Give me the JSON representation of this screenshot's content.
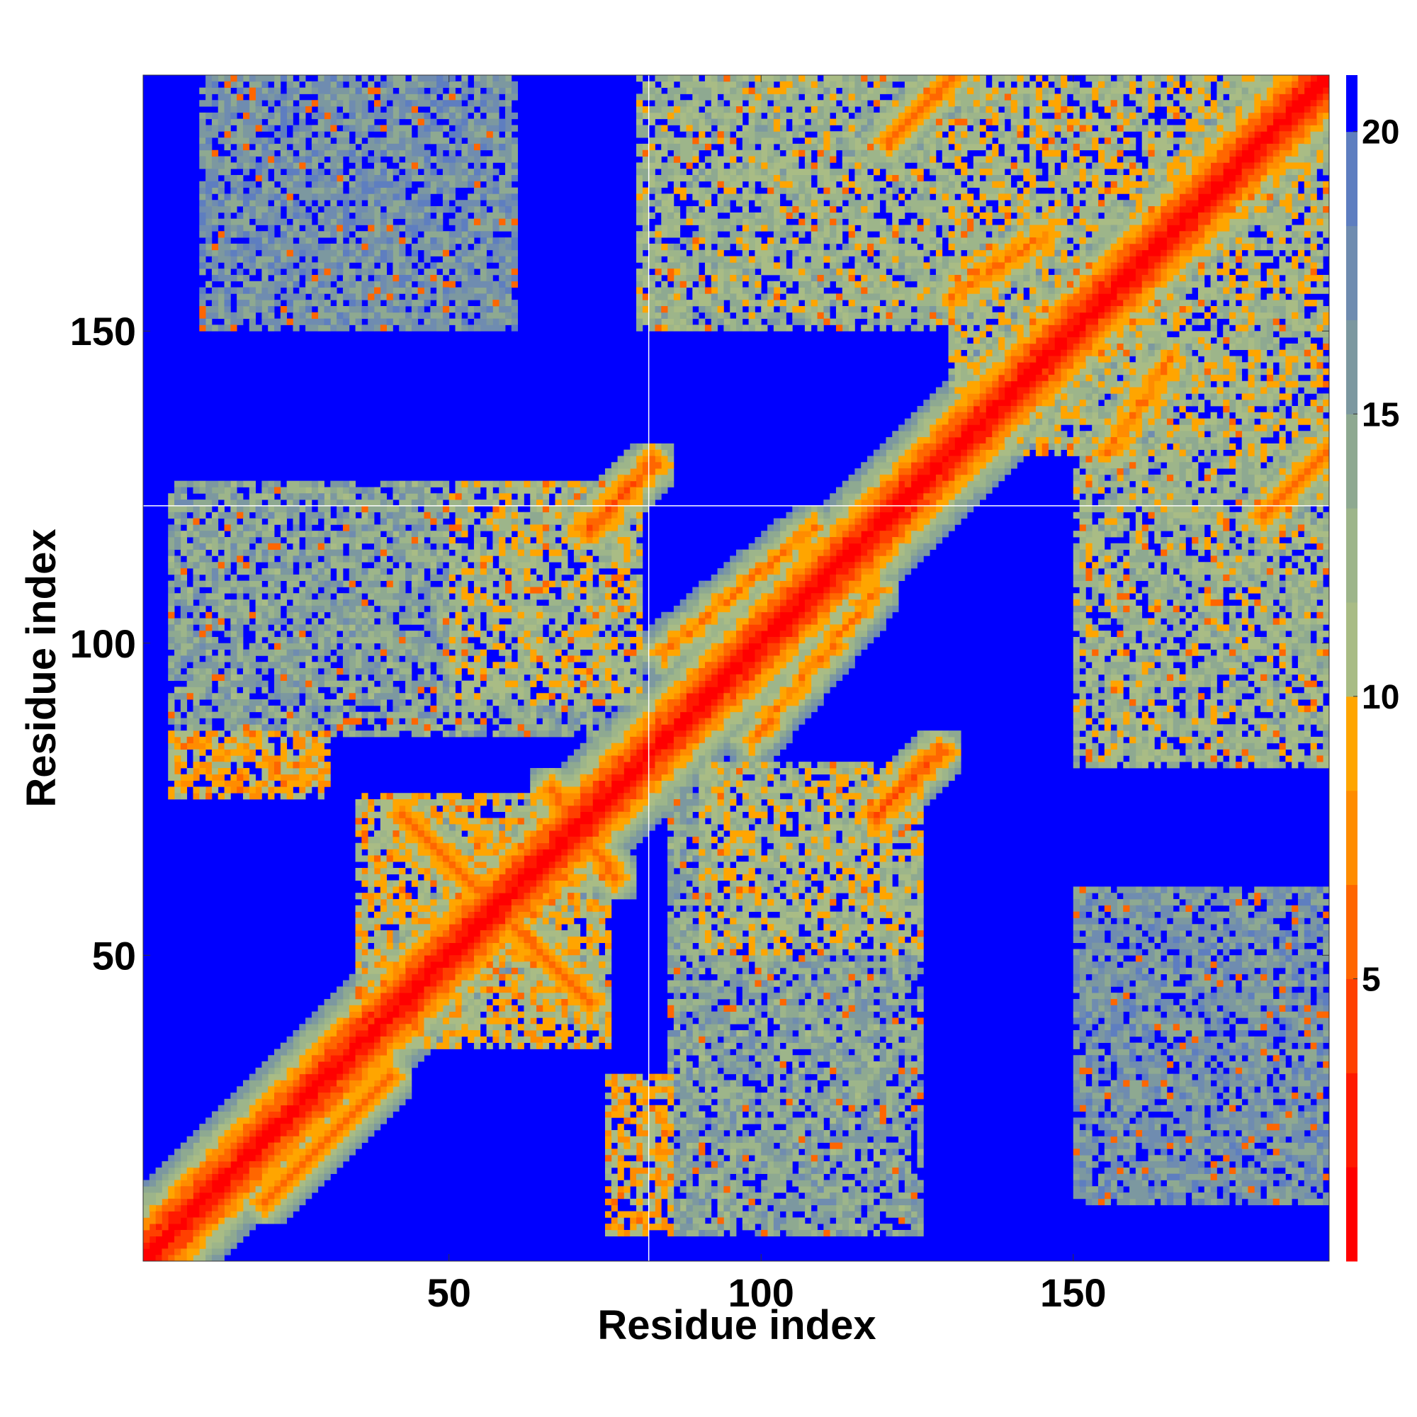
{
  "chart_data": {
    "type": "heatmap",
    "title": "",
    "xlabel": "Residue index",
    "ylabel": "Residue index",
    "n_residues": 190,
    "xlim": [
      1,
      190
    ],
    "ylim": [
      1,
      190
    ],
    "x_ticks": [
      50,
      100,
      150
    ],
    "y_ticks": [
      50,
      100,
      150
    ],
    "x_tick_labels": [
      "50",
      "100",
      "150"
    ],
    "y_tick_labels": [
      "50",
      "100",
      "150"
    ],
    "colorbar": {
      "range": [
        0,
        21
      ],
      "ticks": [
        5,
        10,
        15,
        20
      ],
      "tick_labels": [
        "5",
        "10",
        "15",
        "20"
      ],
      "low_color": "#ff0000",
      "mid_color": "#ffa500",
      "high_color": "#99b27f",
      "max_color": "#0000ff",
      "palette": [
        "#ff0000",
        "#ff1a00",
        "#ff4000",
        "#ff6600",
        "#ff8c00",
        "#ffa500",
        "#a9bc85",
        "#9db58a",
        "#8ea991",
        "#7c98a0",
        "#6f8cb0",
        "#5e7ec0",
        "#0000ff"
      ]
    },
    "background_value": 21,
    "guide_lines": {
      "x": 82,
      "y": 122,
      "color": "#ffffff"
    },
    "diagonal": {
      "value": 0
    },
    "contact_segments": [
      {
        "start": [
          20,
          10
        ],
        "end": [
          40,
          30
        ],
        "value": 6
      },
      {
        "start": [
          42,
          72
        ],
        "end": [
          72,
          42
        ],
        "value": 6
      },
      {
        "start": [
          66,
          76
        ],
        "end": [
          76,
          62
        ],
        "value": 6
      },
      {
        "start": [
          72,
          118
        ],
        "end": [
          82,
          128
        ],
        "value": 5
      },
      {
        "start": [
          118,
          72
        ],
        "end": [
          128,
          82
        ],
        "value": 5
      },
      {
        "start": [
          98,
          84
        ],
        "end": [
          118,
          108
        ],
        "value": 7
      },
      {
        "start": [
          84,
          98
        ],
        "end": [
          108,
          118
        ],
        "value": 7
      },
      {
        "start": [
          120,
          180
        ],
        "end": [
          130,
          190
        ],
        "value": 6
      },
      {
        "start": [
          180,
          120
        ],
        "end": [
          190,
          130
        ],
        "value": 6
      },
      {
        "start": [
          155,
          130
        ],
        "end": [
          165,
          145
        ],
        "value": 7
      },
      {
        "start": [
          130,
          155
        ],
        "end": [
          145,
          165
        ],
        "value": 7
      }
    ],
    "contact_regions": [
      {
        "x": [
          5,
          30
        ],
        "y": [
          75,
          85
        ],
        "value": 10
      },
      {
        "x": [
          75,
          85
        ],
        "y": [
          5,
          30
        ],
        "value": 10
      },
      {
        "x": [
          35,
          75
        ],
        "y": [
          35,
          75
        ],
        "value": 11
      },
      {
        "x": [
          50,
          80
        ],
        "y": [
          90,
          125
        ],
        "value": 12
      },
      {
        "x": [
          90,
          125
        ],
        "y": [
          50,
          80
        ],
        "value": 12
      },
      {
        "x": [
          85,
          125
        ],
        "y": [
          5,
          75
        ],
        "value": 15
      },
      {
        "x": [
          5,
          75
        ],
        "y": [
          85,
          125
        ],
        "value": 15
      },
      {
        "x": [
          150,
          190
        ],
        "y": [
          80,
          130
        ],
        "value": 13
      },
      {
        "x": [
          80,
          130
        ],
        "y": [
          150,
          190
        ],
        "value": 13
      },
      {
        "x": [
          140,
          190
        ],
        "y": [
          130,
          190
        ],
        "value": 12
      },
      {
        "x": [
          130,
          190
        ],
        "y": [
          140,
          190
        ],
        "value": 12
      },
      {
        "x": [
          20,
          45
        ],
        "y": [
          165,
          190
        ],
        "value": 17
      },
      {
        "x": [
          165,
          190
        ],
        "y": [
          20,
          45
        ],
        "value": 17
      },
      {
        "x": [
          150,
          190
        ],
        "y": [
          10,
          60
        ],
        "value": 17
      },
      {
        "x": [
          10,
          60
        ],
        "y": [
          150,
          190
        ],
        "value": 17
      }
    ]
  }
}
